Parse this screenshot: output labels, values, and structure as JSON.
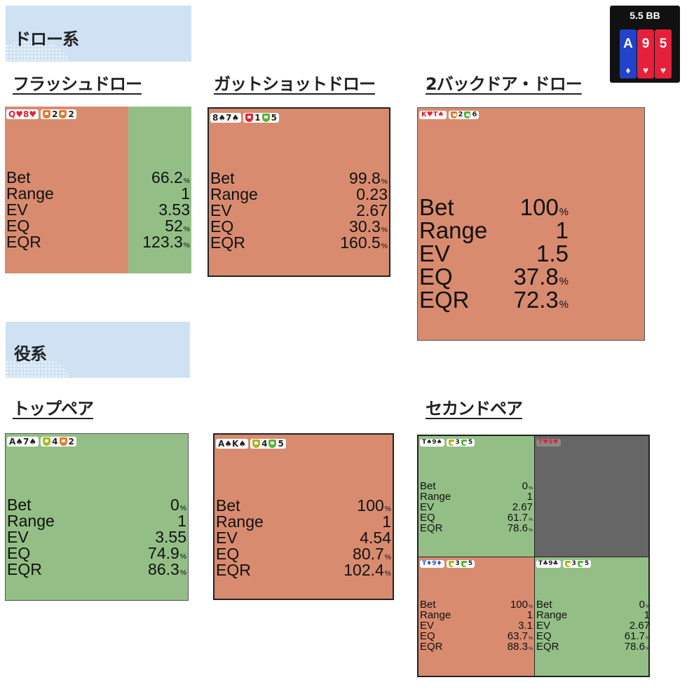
{
  "sections": {
    "draw": "ドロー系",
    "made": "役系"
  },
  "hero": {
    "bb": "5.5 BB",
    "cards": [
      {
        "rank": "A",
        "suit": "♦",
        "color": "blue"
      },
      {
        "rank": "9",
        "suit": "♥",
        "color": "red"
      },
      {
        "rank": "5",
        "suit": "♥",
        "color": "red"
      }
    ]
  },
  "labels": {
    "bet": "Bet",
    "range": "Range",
    "ev": "EV",
    "eq": "EQ",
    "eqr": "EQR"
  },
  "hands": {
    "flush": {
      "title": "フラッシュドロー",
      "combo": "Q♥8♥",
      "shield1": "2",
      "shield2": "2",
      "bet_pct": 66.2,
      "stats": {
        "bet": "66.2",
        "range": "1",
        "ev": "3.53",
        "eq": "52",
        "eqr": "123.3"
      }
    },
    "gutshot": {
      "title": "ガットショットドロー",
      "combo": "8♠7♠",
      "shield1": "1",
      "shield2": "5",
      "stats": {
        "bet": "99.8",
        "range": "0.23",
        "ev": "2.67",
        "eq": "30.3",
        "eqr": "160.5"
      }
    },
    "backdoor": {
      "title": "2バックドア・ドロー",
      "combo": "K♥T♠",
      "shield1": "2",
      "shield2": "6",
      "stats": {
        "bet": "100",
        "range": "1",
        "ev": "1.5",
        "eq": "37.8",
        "eqr": "72.3"
      }
    },
    "toppair1": {
      "title": "トップペア",
      "combo": "A♠7♠",
      "shield1": "4",
      "shield2": "2",
      "stats": {
        "bet": "0",
        "range": "1",
        "ev": "3.55",
        "eq": "74.9",
        "eqr": "86.3"
      }
    },
    "toppair2": {
      "combo": "A♠K♠",
      "shield1": "4",
      "shield2": "5",
      "stats": {
        "bet": "100",
        "range": "1",
        "ev": "4.54",
        "eq": "80.7",
        "eqr": "102.4"
      }
    },
    "second": {
      "title": "セカンドペア",
      "cells": [
        {
          "combo": "T♠9♠",
          "shield1": "3",
          "shield2": "5",
          "stats": {
            "bet": "0",
            "range": "1",
            "ev": "2.67",
            "eq": "61.7",
            "eqr": "78.6"
          }
        },
        {
          "combo": "T♥9♥"
        },
        {
          "combo": "T♦9♦",
          "shield1": "3",
          "shield2": "5",
          "stats": {
            "bet": "100",
            "range": "1",
            "ev": "3.1",
            "eq": "63.7",
            "eqr": "88.3"
          }
        },
        {
          "combo": "T♣9♣",
          "shield1": "3",
          "shield2": "5",
          "stats": {
            "bet": "0",
            "range": "1",
            "ev": "2.67",
            "eq": "61.7",
            "eqr": "78.6"
          }
        }
      ]
    }
  },
  "units": {
    "pct": "%"
  },
  "colors": {
    "check": "#93bf86",
    "bet": "#d98b6f",
    "blocked": "#666666",
    "banner": "#cfe2f3"
  }
}
